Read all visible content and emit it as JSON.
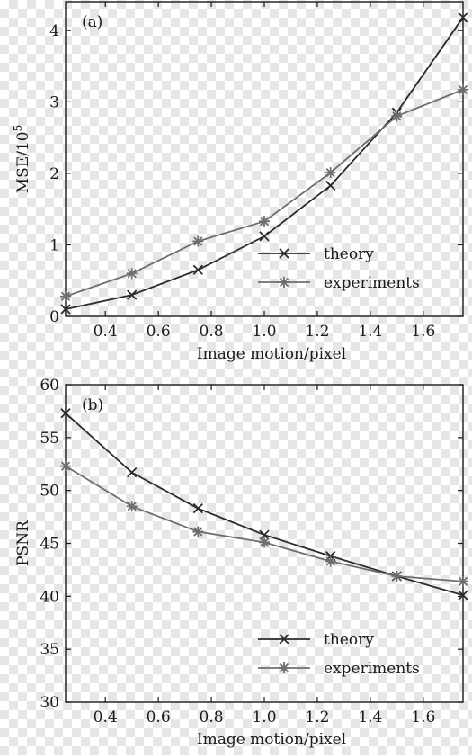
{
  "colors": {
    "theory": "#2b2b2b",
    "experiments": "#6e6e6e",
    "axis": "#1a1a1a"
  },
  "chart_data": [
    {
      "type": "line",
      "panel_label": "(a)",
      "title": "",
      "xlabel": "Image motion/pixel",
      "ylabel": "MSE/10",
      "ylabel_exponent": "5",
      "xlim": [
        0.25,
        1.75
      ],
      "ylim": [
        0,
        4.4
      ],
      "xticks": [
        "0.4",
        "0.6",
        "0.8",
        "1.0",
        "1.2",
        "1.4",
        "1.6"
      ],
      "yticks": [
        "0",
        "1",
        "2",
        "3",
        "4"
      ],
      "grid": false,
      "legend_position": "bottom-right",
      "x": [
        0.25,
        0.5,
        0.75,
        1.0,
        1.25,
        1.5,
        1.75
      ],
      "series": [
        {
          "name": "theory",
          "marker": "x",
          "values": [
            0.1,
            0.3,
            0.65,
            1.12,
            1.83,
            2.85,
            4.18
          ]
        },
        {
          "name": "experiments",
          "marker": "star",
          "values": [
            0.28,
            0.6,
            1.05,
            1.33,
            2.01,
            2.8,
            3.17
          ]
        }
      ]
    },
    {
      "type": "line",
      "panel_label": "(b)",
      "title": "",
      "xlabel": "Image motion/pixel",
      "ylabel": "PSNR",
      "ylim": [
        30,
        60
      ],
      "xlim": [
        0.25,
        1.75
      ],
      "xticks": [
        "0.4",
        "0.6",
        "0.8",
        "1.0",
        "1.2",
        "1.4",
        "1.6"
      ],
      "yticks": [
        "30",
        "35",
        "40",
        "45",
        "50",
        "55",
        "60"
      ],
      "grid": false,
      "legend_position": "bottom-right",
      "x": [
        0.25,
        0.5,
        0.75,
        1.0,
        1.25,
        1.5,
        1.75
      ],
      "series": [
        {
          "name": "theory",
          "marker": "x",
          "values": [
            57.3,
            51.7,
            48.3,
            45.8,
            43.8,
            41.9,
            40.1
          ]
        },
        {
          "name": "experiments",
          "marker": "star",
          "values": [
            52.3,
            48.5,
            46.1,
            45.1,
            43.3,
            41.9,
            41.4
          ]
        }
      ]
    }
  ]
}
